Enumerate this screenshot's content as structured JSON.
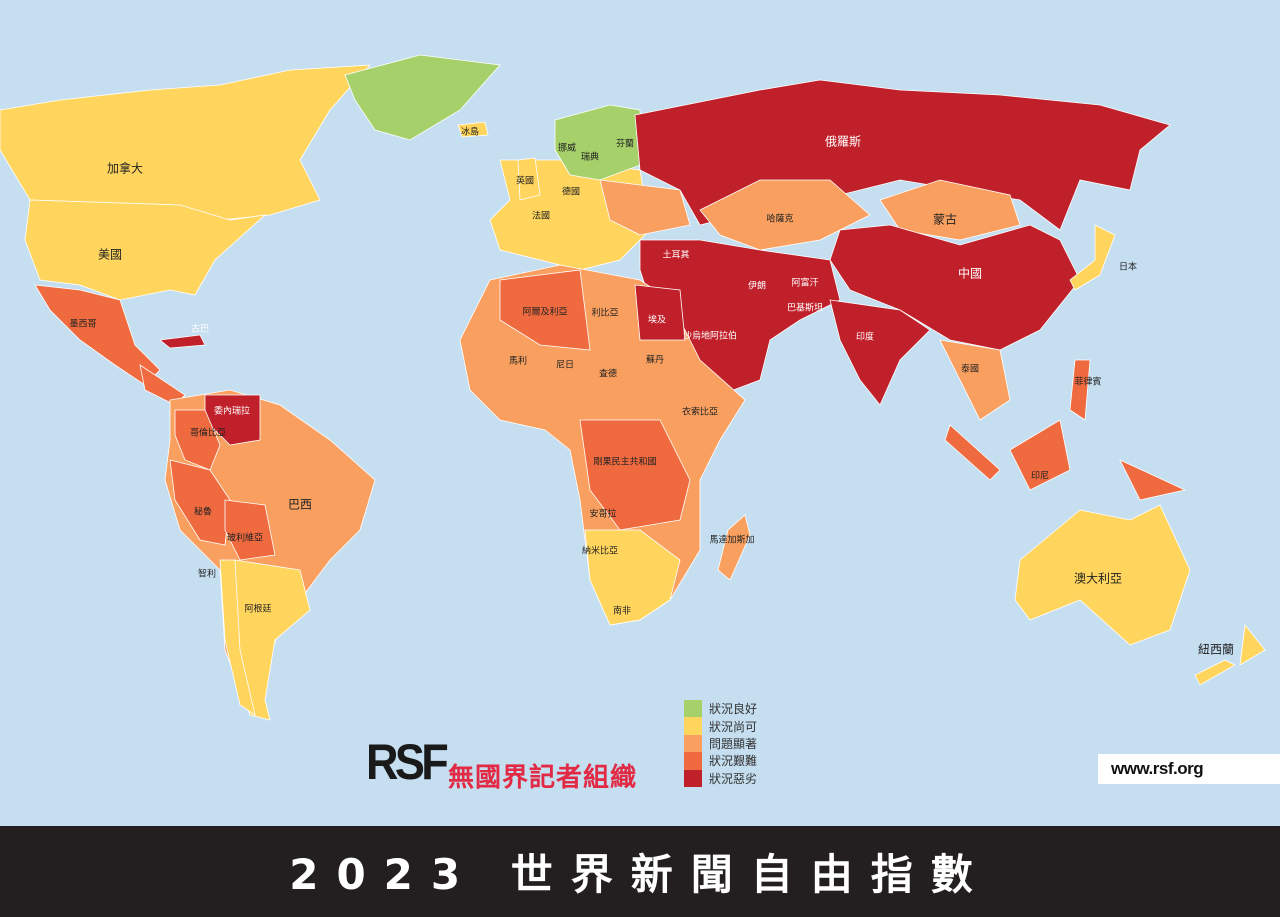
{
  "colors": {
    "good": "#a6d16a",
    "satisfactory": "#ffd55e",
    "problematic": "#f9a060",
    "difficult": "#ef6a3f",
    "very_serious": "#c0202a",
    "ocean": "#c5def0"
  },
  "legend": [
    {
      "label": "狀況良好",
      "status": "good"
    },
    {
      "label": "狀況尚可",
      "status": "satisfactory"
    },
    {
      "label": "問題顯著",
      "status": "problematic"
    },
    {
      "label": "狀況艱難",
      "status": "difficult"
    },
    {
      "label": "狀況惡劣",
      "status": "very_serious"
    }
  ],
  "logo": {
    "mark": "RSF",
    "org_name": "無國界記者組織"
  },
  "url": "www.rsf.org",
  "title": "2023 世界新聞自由指數",
  "countries": [
    {
      "name": "加拿大",
      "status": "satisfactory"
    },
    {
      "name": "美國",
      "status": "satisfactory"
    },
    {
      "name": "墨西哥",
      "status": "difficult"
    },
    {
      "name": "古巴",
      "status": "very_serious"
    },
    {
      "name": "委內瑞拉",
      "status": "very_serious"
    },
    {
      "name": "哥倫比亞",
      "status": "difficult"
    },
    {
      "name": "秘魯",
      "status": "difficult"
    },
    {
      "name": "玻利維亞",
      "status": "difficult"
    },
    {
      "name": "巴西",
      "status": "problematic"
    },
    {
      "name": "智利",
      "status": "satisfactory"
    },
    {
      "name": "阿根廷",
      "status": "satisfactory"
    },
    {
      "name": "冰島",
      "status": "good"
    },
    {
      "name": "英國",
      "status": "satisfactory"
    },
    {
      "name": "法國",
      "status": "satisfactory"
    },
    {
      "name": "德國",
      "status": "satisfactory"
    },
    {
      "name": "挪威",
      "status": "good"
    },
    {
      "name": "瑞典",
      "status": "good"
    },
    {
      "name": "芬蘭",
      "status": "good"
    },
    {
      "name": "俄羅斯",
      "status": "very_serious"
    },
    {
      "name": "哈薩克",
      "status": "problematic"
    },
    {
      "name": "蒙古",
      "status": "problematic"
    },
    {
      "name": "中國",
      "status": "very_serious"
    },
    {
      "name": "土耳其",
      "status": "very_serious"
    },
    {
      "name": "伊朗",
      "status": "very_serious"
    },
    {
      "name": "阿富汗",
      "status": "very_serious"
    },
    {
      "name": "巴基斯坦",
      "status": "very_serious"
    },
    {
      "name": "印度",
      "status": "very_serious"
    },
    {
      "name": "沙烏地阿拉伯",
      "status": "very_serious"
    },
    {
      "name": "埃及",
      "status": "very_serious"
    },
    {
      "name": "阿爾及利亞",
      "status": "difficult"
    },
    {
      "name": "利比亞",
      "status": "problematic"
    },
    {
      "name": "馬利",
      "status": "problematic"
    },
    {
      "name": "尼日",
      "status": "problematic"
    },
    {
      "name": "查德",
      "status": "problematic"
    },
    {
      "name": "蘇丹",
      "status": "difficult"
    },
    {
      "name": "衣索比亞",
      "status": "difficult"
    },
    {
      "name": "剛果民主共和國",
      "status": "difficult"
    },
    {
      "name": "安哥拉",
      "status": "difficult"
    },
    {
      "name": "納米比亞",
      "status": "satisfactory"
    },
    {
      "name": "南非",
      "status": "satisfactory"
    },
    {
      "name": "馬達加斯加",
      "status": "problematic"
    },
    {
      "name": "泰國",
      "status": "problematic"
    },
    {
      "name": "日本",
      "status": "satisfactory"
    },
    {
      "name": "菲律賓",
      "status": "difficult"
    },
    {
      "name": "印尼",
      "status": "difficult"
    },
    {
      "name": "澳大利亞",
      "status": "satisfactory"
    },
    {
      "name": "紐西蘭",
      "status": "satisfactory"
    }
  ]
}
